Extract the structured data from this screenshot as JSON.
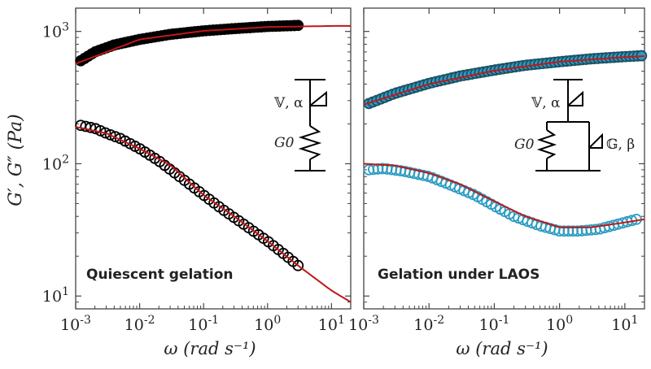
{
  "ylabel": "G′, G″ (Pa)",
  "colors": {
    "fit": "#c01818",
    "storage_left": "#000000",
    "loss_left": "#000000",
    "storage_right": "#2b9cc2",
    "loss_right": "#2b9cc2"
  },
  "chart_data": [
    {
      "type": "scatter",
      "yscale": "log",
      "xscale": "log",
      "xlabel": "ω (rad s⁻¹)",
      "ylabel": "G′, G″ (Pa)",
      "xlim": [
        0.001,
        20
      ],
      "ylim": [
        8,
        1500
      ],
      "xticks": [
        "10-3",
        "10-2",
        "10-1",
        "100",
        "101"
      ],
      "yticks": [
        "101",
        "102",
        "103"
      ],
      "annotation": "Quiescent gelation",
      "model": {
        "spring": "G0",
        "springpot": "𝕍, α"
      },
      "series": [
        {
          "name": "",
          "marker": "filled-circle",
          "x": [
            0.0012,
            0.002,
            0.004,
            0.01,
            0.03,
            0.1,
            0.3,
            1,
            3
          ],
          "y": [
            600,
            700,
            790,
            870,
            950,
            1010,
            1050,
            1090,
            1110
          ]
        },
        {
          "name": "",
          "marker": "open-circle",
          "x": [
            0.0012,
            0.002,
            0.003,
            0.005,
            0.01,
            0.02,
            0.05,
            0.1,
            0.2,
            0.5,
            1,
            2,
            3
          ],
          "y": [
            195,
            185,
            170,
            155,
            130,
            105,
            75,
            58,
            45,
            33,
            26,
            20,
            17
          ]
        }
      ],
      "fits": [
        {
          "x": [
            0.001,
            0.01,
            0.1,
            1,
            10,
            20
          ],
          "y": [
            570,
            870,
            1010,
            1080,
            1100,
            1100
          ]
        },
        {
          "x": [
            0.001,
            0.003,
            0.01,
            0.03,
            0.1,
            0.3,
            1,
            3,
            10,
            20
          ],
          "y": [
            190,
            170,
            130,
            98,
            58,
            40,
            26,
            17,
            11,
            9
          ]
        }
      ]
    },
    {
      "type": "scatter",
      "yscale": "log",
      "xscale": "log",
      "xlabel": "ω (rad s⁻¹)",
      "xlim": [
        0.001,
        20
      ],
      "ylim": [
        8,
        1500
      ],
      "xticks": [
        "10-3",
        "10-2",
        "10-1",
        "100",
        "101"
      ],
      "annotation": "Gelation under LAOS",
      "model": {
        "spring": "G0",
        "springpot": "𝕍, α",
        "springpot2": "𝔾, β"
      },
      "series": [
        {
          "name": "",
          "marker": "filled-circle",
          "x": [
            0.0012,
            0.003,
            0.01,
            0.03,
            0.1,
            0.3,
            1,
            3,
            10,
            18
          ],
          "y": [
            285,
            340,
            405,
            460,
            510,
            555,
            590,
            620,
            645,
            655
          ]
        },
        {
          "name": "",
          "marker": "open-circle",
          "x": [
            0.0012,
            0.002,
            0.004,
            0.01,
            0.02,
            0.05,
            0.1,
            0.2,
            0.5,
            1,
            2,
            4,
            8,
            15
          ],
          "y": [
            90,
            92,
            88,
            80,
            70,
            58,
            48,
            40,
            34,
            31,
            31,
            32,
            35,
            38
          ]
        }
      ],
      "fits": [
        {
          "x": [
            0.001,
            0.01,
            0.1,
            1,
            10,
            20
          ],
          "y": [
            280,
            400,
            505,
            590,
            640,
            650
          ]
        },
        {
          "x": [
            0.001,
            0.003,
            0.01,
            0.03,
            0.1,
            0.3,
            1,
            3,
            10,
            20
          ],
          "y": [
            100,
            97,
            85,
            70,
            52,
            40,
            33,
            33,
            36,
            38
          ]
        }
      ]
    }
  ]
}
